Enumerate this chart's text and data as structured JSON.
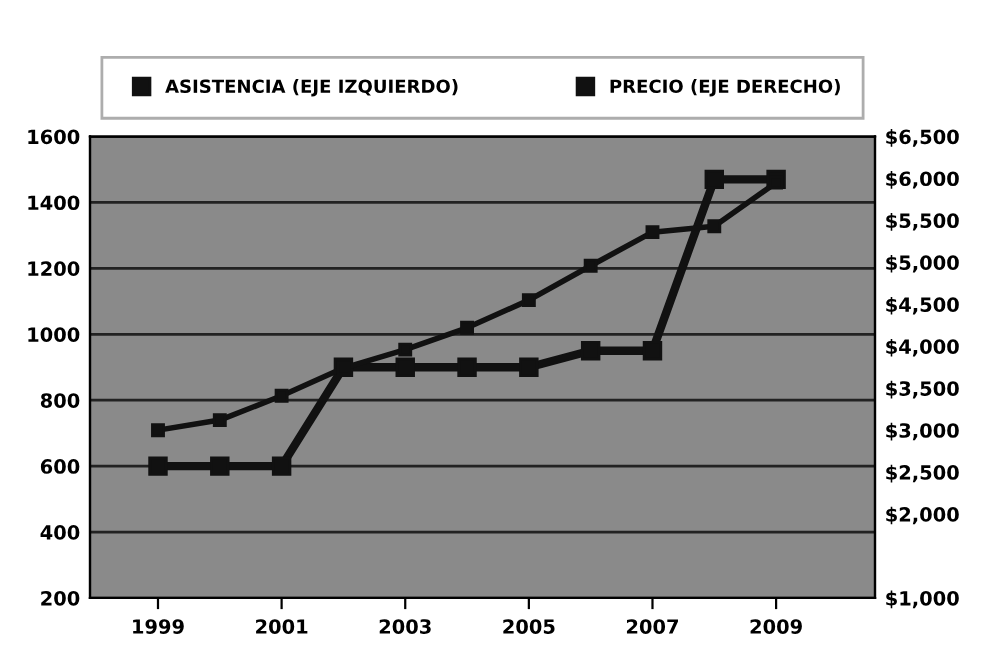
{
  "chart_data": {
    "type": "line",
    "x": [
      1999,
      2000,
      2001,
      2002,
      2003,
      2004,
      2005,
      2006,
      2007,
      2008,
      2009
    ],
    "series": [
      {
        "name": "ASISTENCIA (EJE IZQUIERDO)",
        "color": "#111111",
        "values": [
          600,
          600,
          600,
          900,
          900,
          900,
          900,
          950,
          950,
          1470,
          1470
        ]
      },
      {
        "name": "PRECIO (EJE DERECHO)",
        "color": "#111111",
        "axis": "y2",
        "values": [
          3000,
          3120,
          3410,
          3740,
          3960,
          4220,
          4550,
          4960,
          5360,
          5430,
          5950
        ]
      }
    ],
    "xlim": [
      1997.9,
      2010.6
    ],
    "xticks": [
      1999,
      2001,
      2003,
      2005,
      2007,
      2009
    ],
    "ylim": [
      200,
      1600
    ],
    "yticks": [
      200,
      400,
      600,
      800,
      1000,
      1200,
      1400,
      1600
    ],
    "y2lim": [
      1000,
      6500
    ],
    "y2ticks": [
      {
        "value": 1000,
        "label": "$1,000"
      },
      {
        "value": 2000,
        "label": "$2,000"
      },
      {
        "value": 2500,
        "label": "$2,500"
      },
      {
        "value": 3000,
        "label": "$3,000"
      },
      {
        "value": 3500,
        "label": "$3,500"
      },
      {
        "value": 4000,
        "label": "$4,000"
      },
      {
        "value": 4500,
        "label": "$4,500"
      },
      {
        "value": 5000,
        "label": "$5,000"
      },
      {
        "value": 5500,
        "label": "$5,500"
      },
      {
        "value": 6000,
        "label": "$6,000"
      },
      {
        "value": 6500,
        "label": "$6,500"
      }
    ],
    "grid": "y",
    "legend": "top",
    "marker": "square",
    "line_style": "solid"
  }
}
